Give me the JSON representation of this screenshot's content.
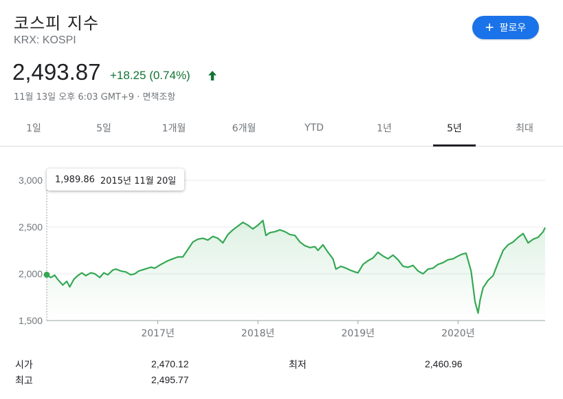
{
  "header": {
    "title": "코스피 지수",
    "ticker": "KRX: KOSPI",
    "follow_label": "팔로우"
  },
  "quote": {
    "price": "2,493.87",
    "change": "+18.25 (0.74%)",
    "timestamp": "11월 13일 오후 6:03 GMT+9 · 면책조항"
  },
  "tabs": [
    {
      "label": "1일",
      "active": false
    },
    {
      "label": "5일",
      "active": false
    },
    {
      "label": "1개월",
      "active": false
    },
    {
      "label": "6개월",
      "active": false
    },
    {
      "label": "YTD",
      "active": false
    },
    {
      "label": "1년",
      "active": false
    },
    {
      "label": "5년",
      "active": true
    },
    {
      "label": "최대",
      "active": false
    }
  ],
  "tooltip": {
    "value": "1,989.86",
    "date": "2015년 11월 20일"
  },
  "stats": [
    {
      "label": "시가",
      "value": "2,470.12"
    },
    {
      "label": "최고",
      "value": "2,495.77"
    },
    {
      "label": "최저",
      "value": "2,460.96"
    }
  ],
  "colors": {
    "line": "#34a853",
    "positive": "#137333",
    "accent": "#1a73e8"
  },
  "chart_data": {
    "type": "area",
    "title": "",
    "xlabel": "",
    "ylabel": "",
    "ylim": [
      1500,
      3000
    ],
    "xlim": [
      2015.89,
      2020.87
    ],
    "y_ticks": [
      1500,
      2000,
      2500,
      3000
    ],
    "y_tick_labels": [
      "1,500",
      "2,000",
      "2,500",
      "3,000"
    ],
    "x_ticks": [
      2017.0,
      2018.0,
      2019.0,
      2020.0
    ],
    "x_tick_labels": [
      "2017년",
      "2018년",
      "2019년",
      "2020년"
    ],
    "grid": true,
    "series": [
      {
        "x": [
          2015.89,
          2015.93,
          2015.97,
          2016.0,
          2016.05,
          2016.09,
          2016.12,
          2016.16,
          2016.2,
          2016.24,
          2016.28,
          2016.33,
          2016.37,
          2016.42,
          2016.46,
          2016.5,
          2016.55,
          2016.58,
          2016.63,
          2016.68,
          2016.73,
          2016.77,
          2016.81,
          2016.87,
          2016.93,
          2016.97,
          2017.03,
          2017.1,
          2017.15,
          2017.2,
          2017.25,
          2017.3,
          2017.35,
          2017.4,
          2017.45,
          2017.5,
          2017.55,
          2017.6,
          2017.65,
          2017.7,
          2017.75,
          2017.8,
          2017.85,
          2017.9,
          2017.95,
          2018.0,
          2018.05,
          2018.08,
          2018.12,
          2018.17,
          2018.22,
          2018.27,
          2018.32,
          2018.37,
          2018.42,
          2018.47,
          2018.52,
          2018.57,
          2018.6,
          2018.65,
          2018.7,
          2018.75,
          2018.78,
          2018.83,
          2018.88,
          2018.92,
          2018.97,
          2019.0,
          2019.05,
          2019.1,
          2019.15,
          2019.2,
          2019.25,
          2019.3,
          2019.35,
          2019.4,
          2019.45,
          2019.5,
          2019.55,
          2019.6,
          2019.65,
          2019.7,
          2019.75,
          2019.8,
          2019.85,
          2019.9,
          2019.95,
          2020.0,
          2020.04,
          2020.08,
          2020.13,
          2020.17,
          2020.2,
          2020.22,
          2020.25,
          2020.3,
          2020.35,
          2020.4,
          2020.45,
          2020.5,
          2020.55,
          2020.6,
          2020.65,
          2020.7,
          2020.75,
          2020.8,
          2020.85,
          2020.87
        ],
        "values": [
          1989.86,
          1960,
          1985,
          1940,
          1880,
          1920,
          1860,
          1940,
          1980,
          2010,
          1980,
          2010,
          2000,
          1960,
          2010,
          1990,
          2040,
          2050,
          2030,
          2020,
          1990,
          2000,
          2030,
          2050,
          2070,
          2060,
          2100,
          2140,
          2160,
          2180,
          2180,
          2260,
          2340,
          2370,
          2380,
          2360,
          2400,
          2380,
          2330,
          2420,
          2470,
          2510,
          2550,
          2520,
          2480,
          2520,
          2570,
          2410,
          2440,
          2450,
          2470,
          2450,
          2420,
          2410,
          2340,
          2300,
          2280,
          2290,
          2250,
          2310,
          2230,
          2160,
          2050,
          2080,
          2060,
          2040,
          2020,
          2010,
          2100,
          2140,
          2170,
          2230,
          2190,
          2160,
          2200,
          2150,
          2080,
          2070,
          2090,
          2030,
          2000,
          2050,
          2060,
          2100,
          2120,
          2150,
          2160,
          2190,
          2210,
          2220,
          2030,
          1700,
          1580,
          1720,
          1850,
          1930,
          1980,
          2120,
          2250,
          2310,
          2340,
          2390,
          2430,
          2330,
          2370,
          2390,
          2450,
          2493.87
        ]
      }
    ]
  }
}
